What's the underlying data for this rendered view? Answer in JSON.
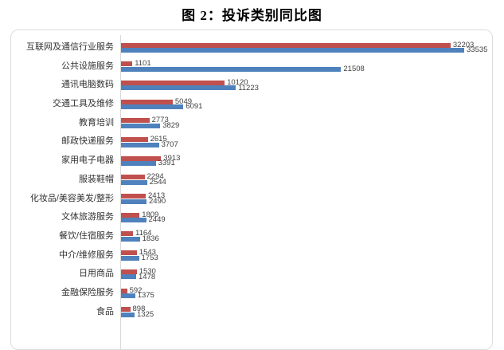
{
  "chart_data": {
    "type": "bar",
    "orientation": "horizontal",
    "title": "图 2：投诉类别同比图",
    "categories": [
      "互联网及通信行业服务",
      "公共设施服务",
      "通讯电脑数码",
      "交通工具及维修",
      "教育培训",
      "邮政快递服务",
      "家用电子电器",
      "服装鞋帽",
      "化妆品/美容美发/整形",
      "文体旅游服务",
      "餐饮/住宿服务",
      "中介/维修服务",
      "日用商品",
      "金融保险服务",
      "食品"
    ],
    "series": [
      {
        "name": "red-series",
        "color": "#C0504D",
        "values": [
          32203,
          1101,
          10120,
          5049,
          2773,
          2615,
          3913,
          2294,
          2413,
          1809,
          1164,
          1543,
          1530,
          592,
          898
        ]
      },
      {
        "name": "blue-series",
        "color": "#4F81BD",
        "values": [
          33535,
          21508,
          11223,
          6091,
          3829,
          3707,
          3391,
          2544,
          2490,
          2449,
          1836,
          1753,
          1478,
          1375,
          1325
        ]
      }
    ],
    "value_labels_shown": true,
    "xlim": [
      0,
      36000
    ],
    "x_axis_tick_labels_visible": false,
    "legend_visible": false,
    "grid": false,
    "colors": {
      "axis_line": "#D9D9D9",
      "box_border": "#DCDCDC",
      "category_label": "#333333",
      "value_label": "#404040",
      "title": "#000000"
    }
  }
}
